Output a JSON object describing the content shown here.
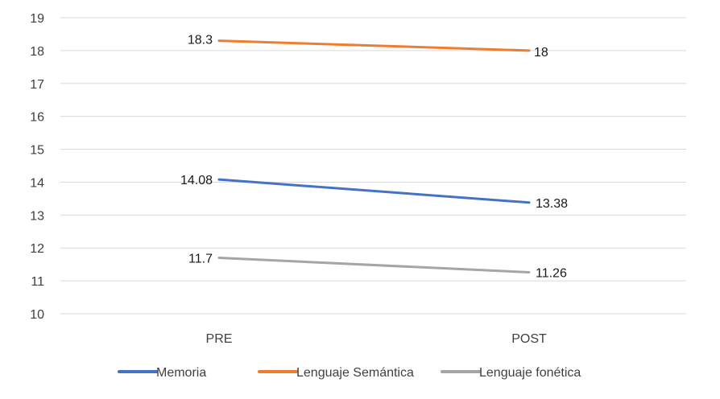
{
  "chart_data": {
    "type": "line",
    "title": "",
    "xlabel": "",
    "ylabel": "",
    "categories": [
      "PRE",
      "POST"
    ],
    "ylim": [
      10,
      19
    ],
    "yticks": [
      10,
      11,
      12,
      13,
      14,
      15,
      16,
      17,
      18,
      19
    ],
    "grid": true,
    "legend_position": "bottom",
    "series": [
      {
        "name": "Memoria",
        "values": [
          14.08,
          13.38
        ],
        "color": "#4472c4",
        "labels": [
          "14.08",
          "13.38"
        ]
      },
      {
        "name": "Lenguaje Semántica",
        "values": [
          18.3,
          18
        ],
        "color": "#ed7d31",
        "labels": [
          "18.3",
          "18"
        ]
      },
      {
        "name": "Lenguaje fonética",
        "values": [
          11.7,
          11.26
        ],
        "color": "#a5a5a5",
        "labels": [
          "11.7",
          "11.26"
        ]
      }
    ]
  }
}
